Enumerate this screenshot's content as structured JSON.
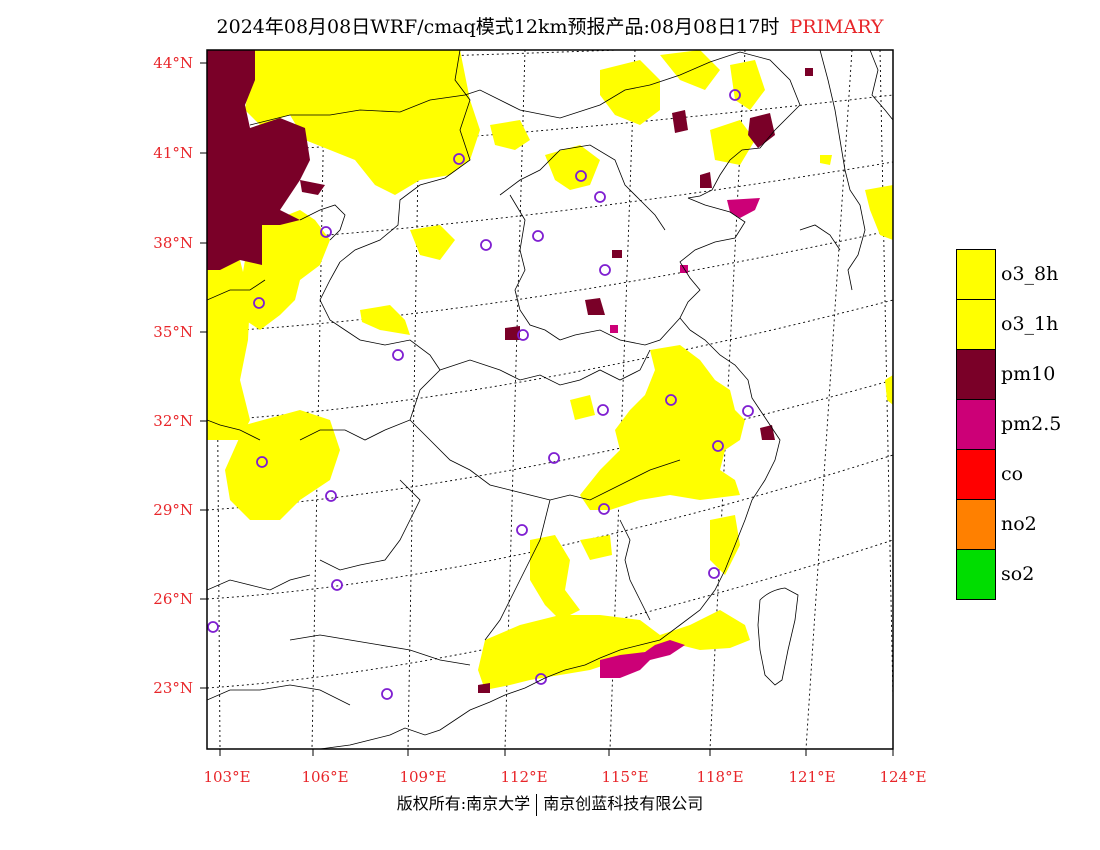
{
  "header": {
    "title": "2024年08月08日WRF/cmaq模式12km预报产品:08月08日17时",
    "mode_label": "PRIMARY"
  },
  "map": {
    "lat_labels": [
      "44°N",
      "41°N",
      "38°N",
      "35°N",
      "32°N",
      "29°N",
      "26°N",
      "23°N"
    ],
    "lon_labels": [
      "103°E",
      "106°E",
      "109°E",
      "112°E",
      "115°E",
      "118°E",
      "121°E",
      "124°E"
    ],
    "colors": {
      "o3": "#ffff00",
      "pm10": "#7a0028",
      "pm25": "#cc0077",
      "co": "#ff0000",
      "no2": "#ff8000",
      "so2": "#00dd00",
      "station": "#7f1fd1",
      "axis_label": "#e8262a"
    }
  },
  "legend": {
    "items": [
      {
        "label": "o3_8h",
        "color": "#ffff00"
      },
      {
        "label": "o3_1h",
        "color": "#ffff00"
      },
      {
        "label": "pm10",
        "color": "#7a0028"
      },
      {
        "label": "pm2.5",
        "color": "#cc0077"
      },
      {
        "label": "co",
        "color": "#ff0000"
      },
      {
        "label": "no2",
        "color": "#ff8000"
      },
      {
        "label": "so2",
        "color": "#00dd00"
      }
    ]
  },
  "footer": {
    "copyright_left": "版权所有:南京大学",
    "copyright_right": "南京创蓝科技有限公司"
  }
}
